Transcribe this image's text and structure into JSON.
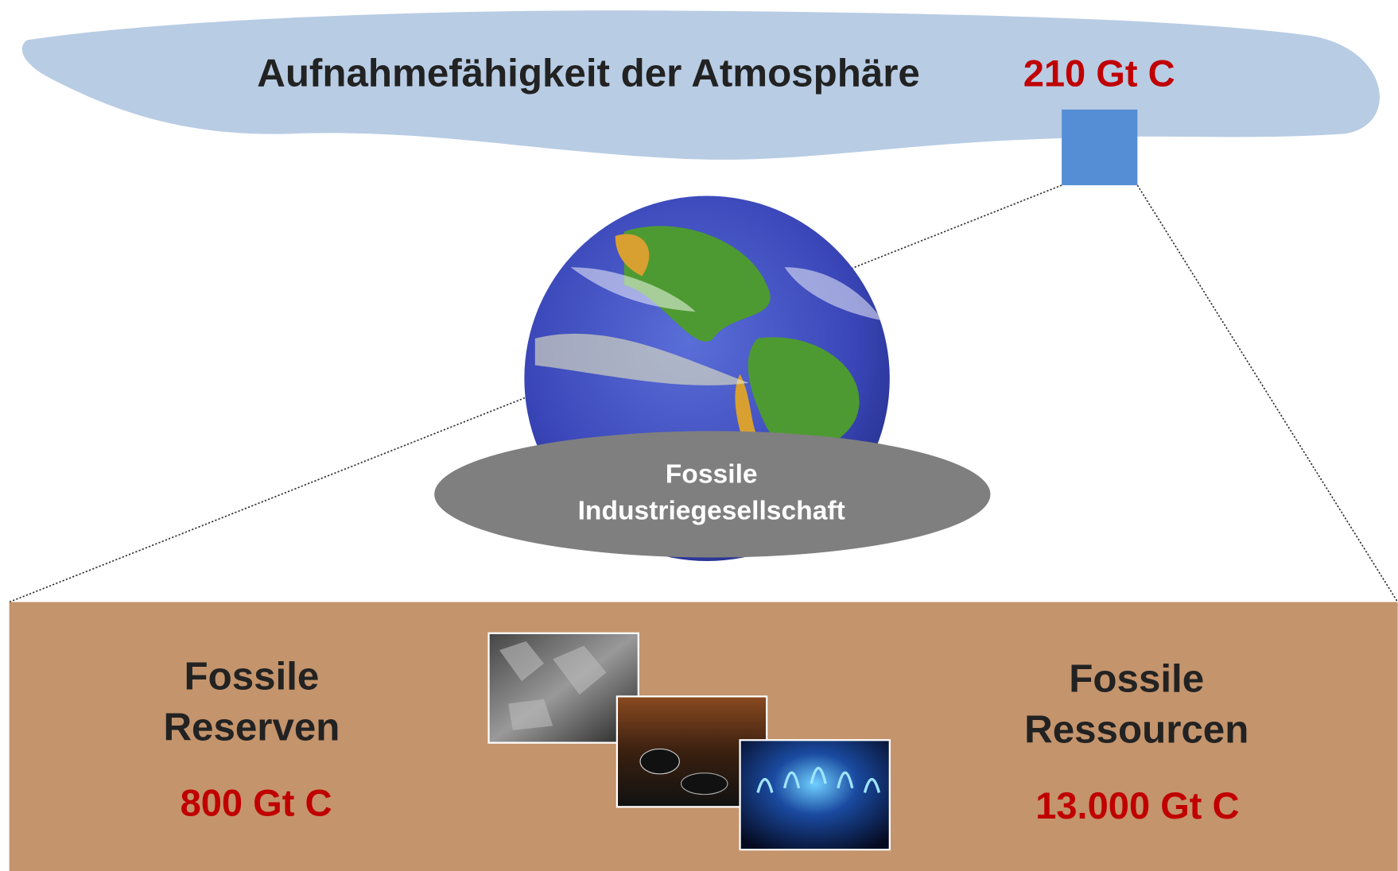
{
  "atmosphere": {
    "label": "Aufnahmefähigkeit der Atmosphäre",
    "value": "210 Gt C"
  },
  "society": {
    "label": [
      "Fossile",
      "Industriegesellschaft"
    ]
  },
  "reserves": {
    "label": [
      "Fossile",
      "Reserven"
    ],
    "value": "800 Gt C"
  },
  "resources": {
    "label": [
      "Fossile",
      "Ressourcen"
    ],
    "value": "13.000 Gt C"
  }
}
